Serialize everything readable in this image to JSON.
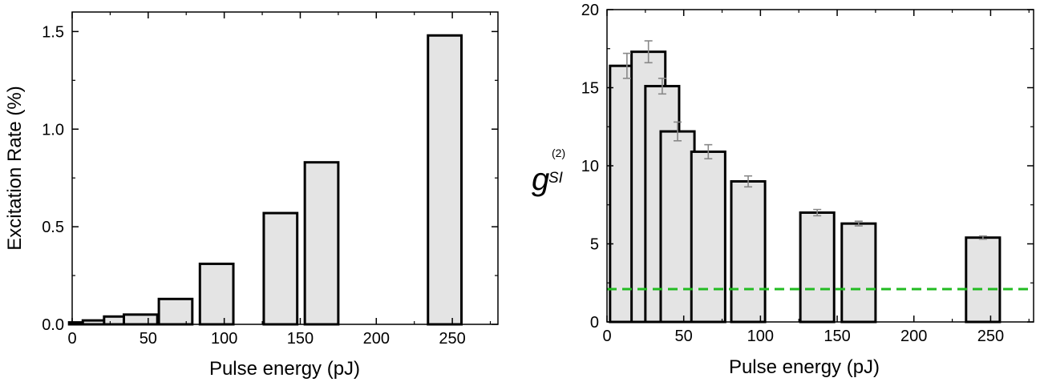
{
  "chart_data": [
    {
      "type": "bar",
      "xlabel": "Pulse energy (pJ)",
      "ylabel": "Excitation Rate (%)",
      "xlim": [
        0,
        280
      ],
      "ylim": [
        0,
        1.6
      ],
      "xticks": [
        0,
        50,
        100,
        150,
        200,
        250
      ],
      "yticks": [
        0.0,
        0.5,
        1.0,
        1.5
      ],
      "xtick_labels": [
        "0",
        "50",
        "100",
        "150",
        "200",
        "250"
      ],
      "ytick_labels": [
        "0.0",
        "0.5",
        "1.0",
        "1.5"
      ],
      "bar_width": 22,
      "x": [
        9,
        18,
        32,
        45,
        68,
        95,
        137,
        164,
        245
      ],
      "values": [
        0.01,
        0.02,
        0.04,
        0.05,
        0.13,
        0.31,
        0.57,
        0.83,
        1.48
      ],
      "bar_color": "#e4e4e4",
      "edge_color": "#000000"
    },
    {
      "type": "bar",
      "xlabel": "Pulse energy (pJ)",
      "ylabel": {
        "main": "g",
        "sup": "(2)",
        "sub": "SI"
      },
      "xlim": [
        0,
        278
      ],
      "ylim": [
        0,
        20
      ],
      "xticks": [
        0,
        50,
        100,
        150,
        200,
        250
      ],
      "yticks": [
        0,
        5,
        10,
        15,
        20
      ],
      "xtick_labels": [
        "0",
        "50",
        "100",
        "150",
        "200",
        "250"
      ],
      "ytick_labels": [
        "0",
        "5",
        "10",
        "15",
        "20"
      ],
      "bar_width": 22,
      "x": [
        13,
        27,
        36,
        46,
        66,
        92,
        137,
        164,
        245
      ],
      "values": [
        16.4,
        17.3,
        15.1,
        12.2,
        10.9,
        9.0,
        7.0,
        6.3,
        5.4
      ],
      "errors": [
        0.8,
        0.7,
        0.5,
        0.6,
        0.45,
        0.35,
        0.2,
        0.15,
        0.1
      ],
      "bar_color": "#e4e4e4",
      "edge_color": "#000000",
      "error_color": "#888888",
      "reference_line": {
        "y": 2.1,
        "color": "#22bb22",
        "style": "dashed"
      }
    }
  ]
}
